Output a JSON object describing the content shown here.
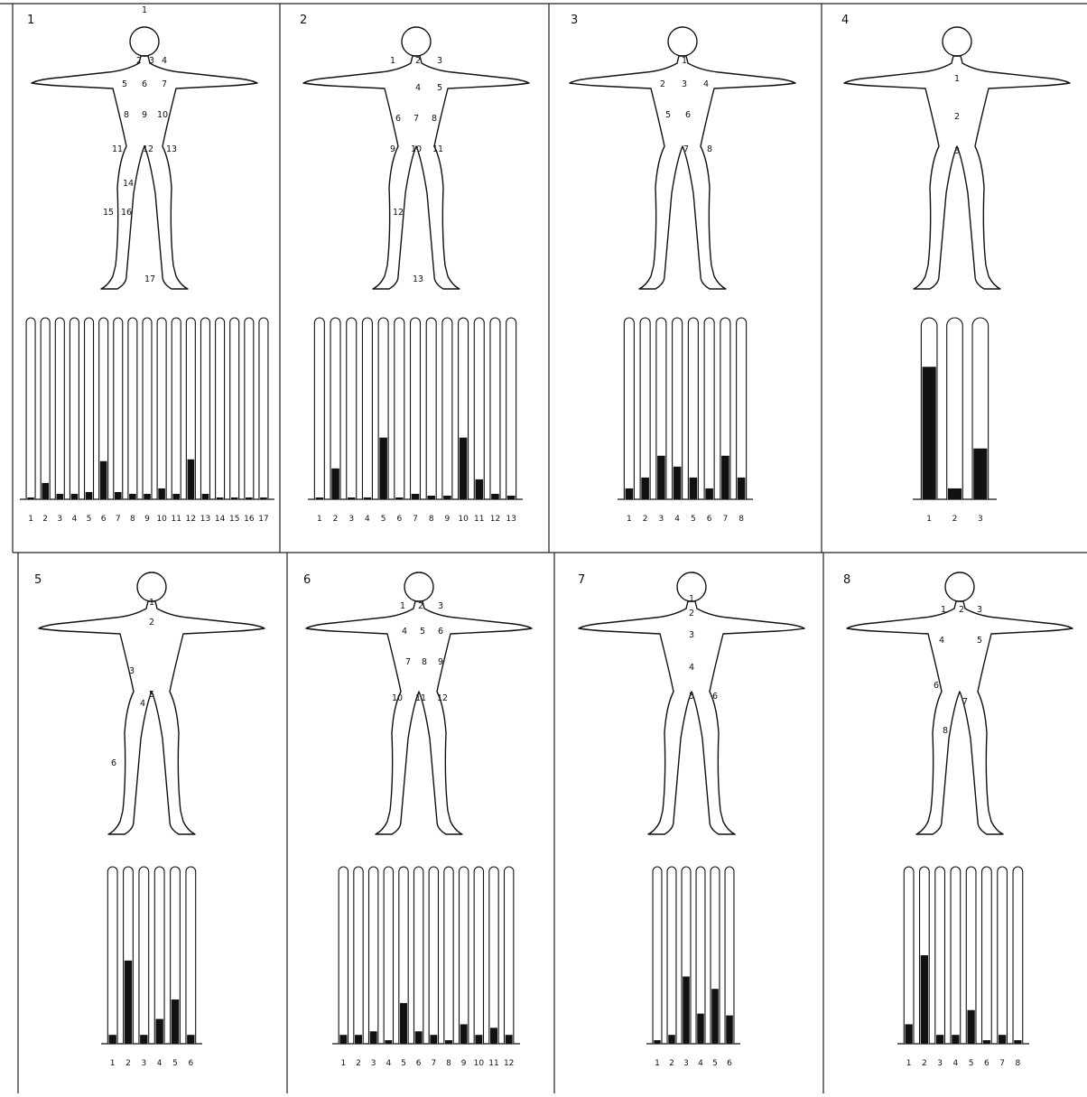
{
  "panels": [
    {
      "number": "1",
      "region_labels": [
        "1",
        "2",
        "3",
        "4",
        "5",
        "6",
        "7",
        "8",
        "9",
        "10",
        "11",
        "12",
        "13",
        "14",
        "15",
        "16",
        "17"
      ],
      "chart_data": {
        "type": "bar",
        "categories": [
          "1",
          "2",
          "3",
          "4",
          "5",
          "6",
          "7",
          "8",
          "9",
          "10",
          "11",
          "12",
          "13",
          "14",
          "15",
          "16",
          "17"
        ],
        "values": [
          1,
          9,
          3,
          3,
          4,
          21,
          4,
          3,
          3,
          6,
          3,
          22,
          3,
          1,
          1,
          1,
          1
        ],
        "ylim": [
          0,
          100
        ],
        "grid": false
      }
    },
    {
      "number": "2",
      "region_labels": [
        "1",
        "2",
        "3",
        "4",
        "5",
        "6",
        "7",
        "8",
        "9",
        "10",
        "11",
        "12",
        "13"
      ],
      "chart_data": {
        "type": "bar",
        "categories": [
          "1",
          "2",
          "3",
          "4",
          "5",
          "6",
          "7",
          "8",
          "9",
          "10",
          "11",
          "12",
          "13"
        ],
        "values": [
          1,
          17,
          1,
          1,
          34,
          1,
          3,
          2,
          2,
          34,
          11,
          3,
          2
        ],
        "ylim": [
          0,
          100
        ],
        "grid": false
      }
    },
    {
      "number": "3",
      "region_labels": [
        "1",
        "2",
        "3",
        "4",
        "5",
        "6",
        "7",
        "8"
      ],
      "chart_data": {
        "type": "bar",
        "categories": [
          "1",
          "2",
          "3",
          "4",
          "5",
          "6",
          "7",
          "8"
        ],
        "values": [
          6,
          12,
          24,
          18,
          12,
          6,
          24,
          12
        ],
        "ylim": [
          0,
          100
        ],
        "grid": false
      }
    },
    {
      "number": "4",
      "region_labels": [
        "1",
        "2",
        "3"
      ],
      "chart_data": {
        "type": "bar",
        "categories": [
          "1",
          "2",
          "3"
        ],
        "values": [
          73,
          6,
          28
        ],
        "ylim": [
          0,
          100
        ],
        "grid": false
      }
    },
    {
      "number": "5",
      "region_labels": [
        "1",
        "2",
        "3",
        "4",
        "5",
        "6"
      ],
      "chart_data": {
        "type": "bar",
        "categories": [
          "1",
          "2",
          "3",
          "4",
          "5",
          "6"
        ],
        "values": [
          5,
          47,
          5,
          14,
          25,
          5
        ],
        "ylim": [
          0,
          100
        ],
        "grid": false
      }
    },
    {
      "number": "6",
      "region_labels": [
        "1",
        "2",
        "3",
        "4",
        "5",
        "6",
        "7",
        "8",
        "9",
        "10",
        "11",
        "12"
      ],
      "chart_data": {
        "type": "bar",
        "categories": [
          "1",
          "2",
          "3",
          "4",
          "5",
          "6",
          "7",
          "8",
          "9",
          "10",
          "11",
          "12"
        ],
        "values": [
          5,
          5,
          7,
          2,
          23,
          7,
          5,
          2,
          11,
          5,
          9,
          5
        ],
        "ylim": [
          0,
          100
        ],
        "grid": false
      }
    },
    {
      "number": "7",
      "region_labels": [
        "1",
        "2",
        "3",
        "4",
        "5",
        "6"
      ],
      "chart_data": {
        "type": "bar",
        "categories": [
          "1",
          "2",
          "3",
          "4",
          "5",
          "6"
        ],
        "values": [
          2,
          5,
          38,
          17,
          31,
          16
        ],
        "ylim": [
          0,
          100
        ],
        "grid": false
      }
    },
    {
      "number": "8",
      "region_labels": [
        "1",
        "2",
        "3",
        "4",
        "5",
        "6",
        "7",
        "8"
      ],
      "chart_data": {
        "type": "bar",
        "categories": [
          "1",
          "2",
          "3",
          "4",
          "5",
          "6",
          "7",
          "8"
        ],
        "values": [
          11,
          50,
          5,
          5,
          19,
          2,
          5,
          2
        ],
        "ylim": [
          0,
          100
        ],
        "grid": false
      }
    }
  ]
}
